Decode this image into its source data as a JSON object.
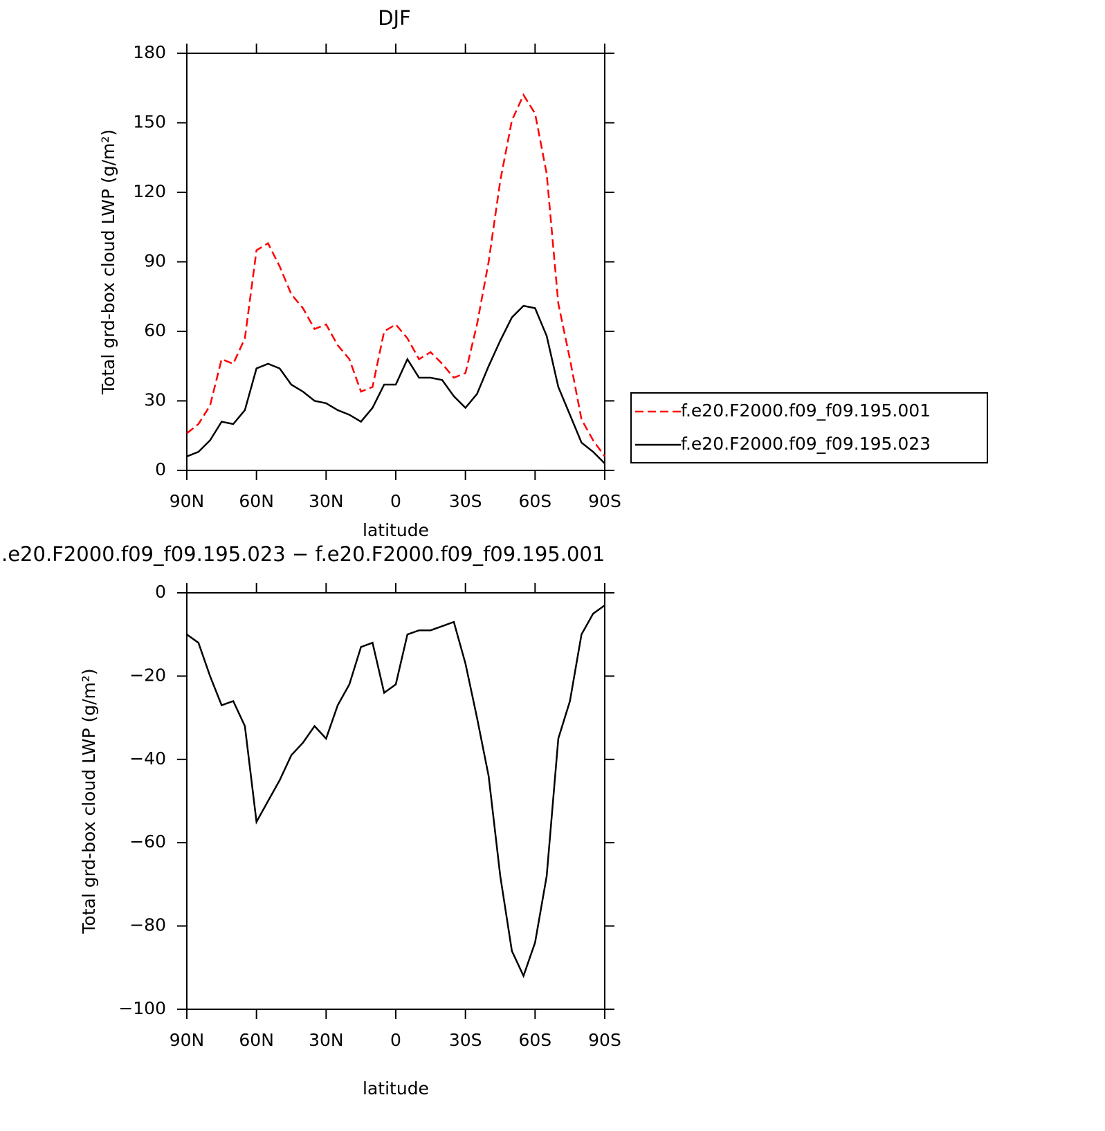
{
  "chart_data": [
    {
      "type": "line",
      "title": "DJF",
      "x_label": "latitude",
      "y_label": "Total grd-box cloud LWP (g/m²)",
      "x": [
        90,
        85,
        80,
        75,
        70,
        65,
        60,
        55,
        50,
        45,
        40,
        35,
        30,
        25,
        20,
        15,
        10,
        5,
        0,
        -5,
        -10,
        -15,
        -20,
        -25,
        -30,
        -35,
        -40,
        -45,
        -50,
        -55,
        -60,
        -65,
        -70,
        -75,
        -80,
        -85,
        -90
      ],
      "series": [
        {
          "name": "f.e20.F2000.f09_f09.195.001",
          "color": "#ff0000",
          "line_style": "dashed",
          "values": [
            16,
            20,
            28,
            48,
            46,
            57,
            95,
            98,
            88,
            76,
            70,
            61,
            63,
            54,
            48,
            34,
            36,
            60,
            63,
            57,
            48,
            51,
            46,
            40,
            42,
            63,
            90,
            125,
            151,
            162,
            154,
            128,
            72,
            48,
            22,
            13,
            6
          ]
        },
        {
          "name": "f.e20.F2000.f09_f09.195.023",
          "color": "#000000",
          "line_style": "solid",
          "values": [
            6,
            8,
            13,
            21,
            20,
            26,
            44,
            46,
            44,
            37,
            34,
            30,
            29,
            26,
            24,
            21,
            27,
            37,
            37,
            48,
            40,
            40,
            39,
            32,
            27,
            33,
            45,
            56,
            66,
            71,
            70,
            58,
            36,
            24,
            12,
            8,
            3
          ]
        }
      ],
      "xlim": [
        90,
        -90
      ],
      "xticks": [
        {
          "value": 90,
          "label": "90N"
        },
        {
          "value": 60,
          "label": "60N"
        },
        {
          "value": 30,
          "label": "30N"
        },
        0,
        {
          "value": -30,
          "label": "30S"
        },
        {
          "value": -60,
          "label": "60S"
        },
        {
          "value": -90,
          "label": "90S"
        }
      ],
      "ylim": [
        0,
        180
      ],
      "yticks": [
        0,
        30,
        60,
        90,
        120,
        150,
        180
      ],
      "legend": "right"
    },
    {
      "type": "line",
      "title": ".e20.F2000.f09_f09.195.023 − f.e20.F2000.f09_f09.195.001",
      "x_label": "latitude",
      "y_label": "Total grd-box cloud LWP (g/m²)",
      "x": [
        90,
        85,
        80,
        75,
        70,
        65,
        60,
        55,
        50,
        45,
        40,
        35,
        30,
        25,
        20,
        15,
        10,
        5,
        0,
        -5,
        -10,
        -15,
        -20,
        -25,
        -30,
        -35,
        -40,
        -45,
        -50,
        -55,
        -60,
        -65,
        -70,
        -75,
        -80,
        -85,
        -90
      ],
      "color": "#000000",
      "values": [
        -10,
        -12,
        -20,
        -27,
        -26,
        -32,
        -55,
        -50,
        -45,
        -39,
        -36,
        -32,
        -35,
        -27,
        -22,
        -13,
        -12,
        -24,
        -22,
        -10,
        -9,
        -9,
        -8,
        -7,
        -17,
        -30,
        -44,
        -68,
        -86,
        -92,
        -84,
        -68,
        -35,
        -26,
        -10,
        -5,
        -3
      ],
      "xlim": [
        90,
        -90
      ],
      "xticks": [
        {
          "value": 90,
          "label": "90N"
        },
        {
          "value": 60,
          "label": "60N"
        },
        {
          "value": 30,
          "label": "30N"
        },
        0,
        {
          "value": -30,
          "label": "30S"
        },
        {
          "value": -60,
          "label": "60S"
        },
        {
          "value": -90,
          "label": "90S"
        }
      ],
      "ylim": [
        -100,
        0
      ],
      "yticks": [
        {
          "value": -100,
          "label": "−100"
        },
        {
          "value": -80,
          "label": "−80"
        },
        {
          "value": -60,
          "label": "−60"
        },
        {
          "value": -40,
          "label": "−40"
        },
        {
          "value": -20,
          "label": "−20"
        },
        0
      ]
    }
  ]
}
